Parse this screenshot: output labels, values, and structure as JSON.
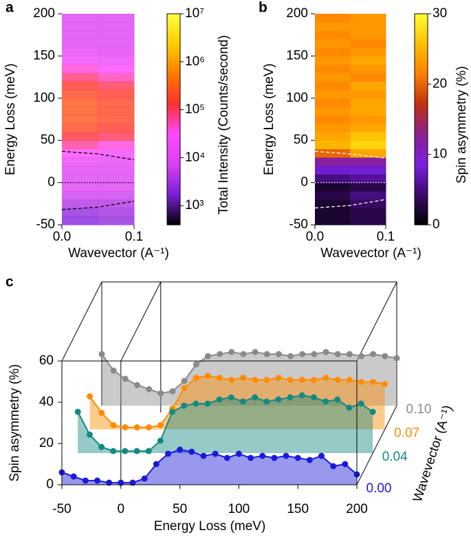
{
  "chart_data": [
    {
      "type": "heatmap",
      "panel": "a",
      "xlabel": "Wavevector (A⁻¹)",
      "ylabel": "Energy Loss (meV)",
      "xlim": [
        0,
        0.1
      ],
      "xticks": [
        {
          "value": 0,
          "label": "0.0"
        },
        0.1
      ],
      "ylim": [
        -50,
        200
      ],
      "yticks": [
        -50,
        0,
        50,
        100,
        150,
        200
      ],
      "xbins": [
        0,
        0.05,
        0.1
      ],
      "ybins": [
        -50,
        -40,
        -30,
        -20,
        -10,
        0,
        10,
        20,
        30,
        40,
        50,
        60,
        70,
        80,
        90,
        100,
        110,
        120,
        130,
        140,
        150,
        160,
        170,
        180,
        190,
        200
      ],
      "z": [
        [
          2000,
          2500
        ],
        [
          2500,
          3000
        ],
        [
          4000,
          4000
        ],
        [
          6000,
          6000
        ],
        [
          8000,
          8000
        ],
        [
          8000,
          8000
        ],
        [
          9000,
          9000
        ],
        [
          15000,
          12000
        ],
        [
          30000,
          20000
        ],
        [
          60000,
          40000
        ],
        [
          120000,
          100000
        ],
        [
          200000,
          150000
        ],
        [
          250000,
          200000
        ],
        [
          250000,
          200000
        ],
        [
          250000,
          200000
        ],
        [
          200000,
          150000
        ],
        [
          150000,
          100000
        ],
        [
          80000,
          50000
        ],
        [
          40000,
          25000
        ],
        [
          20000,
          15000
        ],
        [
          12000,
          10000
        ],
        [
          10000,
          9000
        ],
        [
          9000,
          8000
        ],
        [
          8000,
          8000
        ],
        [
          8000,
          8000
        ]
      ],
      "guide_color": "#000000",
      "guides": [
        {
          "style": "dashed",
          "x": [
            0,
            0.05,
            0.1
          ],
          "y": [
            37,
            34,
            27
          ]
        },
        {
          "style": "dotted",
          "x": [
            0,
            0.1
          ],
          "y": [
            0,
            0
          ]
        },
        {
          "style": "dashed",
          "x": [
            0,
            0.05,
            0.1
          ],
          "y": [
            -32,
            -29,
            -22
          ]
        }
      ],
      "colorbar": {
        "label": "Total Intensity (Counts/second)",
        "log": true,
        "lim": [
          400,
          10000000
        ],
        "ticks": [
          {
            "value": 1000,
            "label": "10³"
          },
          {
            "value": 10000,
            "label": "10⁴"
          },
          {
            "value": 100000,
            "label": "10⁵"
          },
          {
            "value": 1000000,
            "label": "10⁶"
          },
          {
            "value": 10000000,
            "label": "10⁷"
          }
        ],
        "colormap": [
          "#000000",
          "#7a1fd6",
          "#d840f0",
          "#ff48ff",
          "#ff3030",
          "#ff7a00",
          "#ffcc00",
          "#ffff40"
        ]
      }
    },
    {
      "type": "heatmap",
      "panel": "b",
      "xlabel": "Wavevector (A⁻¹)",
      "ylabel": "Energy Loss (meV)",
      "xlim": [
        0,
        0.1
      ],
      "xticks": [
        {
          "value": 0,
          "label": "0.0"
        },
        0.1
      ],
      "ylim": [
        -50,
        200
      ],
      "yticks": [
        -50,
        0,
        50,
        100,
        150,
        200
      ],
      "xbins": [
        0,
        0.05,
        0.1
      ],
      "ybins": [
        -50,
        -40,
        -30,
        -20,
        -10,
        0,
        10,
        20,
        30,
        40,
        50,
        60,
        70,
        80,
        90,
        100,
        110,
        120,
        130,
        140,
        150,
        160,
        170,
        180,
        190,
        200
      ],
      "z": [
        [
          2,
          3
        ],
        [
          2,
          3
        ],
        [
          2,
          4
        ],
        [
          3,
          5
        ],
        [
          2,
          3
        ],
        [
          5,
          6
        ],
        [
          8,
          8
        ],
        [
          12,
          12
        ],
        [
          20,
          24
        ],
        [
          25,
          27
        ],
        [
          24,
          26
        ],
        [
          23,
          24
        ],
        [
          22,
          23
        ],
        [
          23,
          24
        ],
        [
          22,
          24
        ],
        [
          23,
          23
        ],
        [
          22,
          24
        ],
        [
          23,
          22
        ],
        [
          22,
          23
        ],
        [
          23,
          24
        ],
        [
          22,
          23
        ],
        [
          23,
          22
        ],
        [
          22,
          23
        ],
        [
          23,
          23
        ],
        [
          22,
          23
        ]
      ],
      "guide_color": "#ffffff",
      "guides": [
        {
          "style": "dashed",
          "x": [
            0,
            0.05,
            0.1
          ],
          "y": [
            37,
            34,
            29
          ]
        },
        {
          "style": "dotted",
          "x": [
            0,
            0.1
          ],
          "y": [
            0,
            0
          ]
        },
        {
          "style": "dashed",
          "x": [
            0,
            0.05,
            0.1
          ],
          "y": [
            -30,
            -27,
            -20
          ]
        }
      ],
      "colorbar": {
        "label": "Spin asymmetry (%)",
        "log": false,
        "lim": [
          0,
          30
        ],
        "ticks": [
          0,
          10,
          20,
          30
        ],
        "colormap": [
          "#000000",
          "#3a0a6a",
          "#7a20e0",
          "#8a2090",
          "#c03010",
          "#ff8000",
          "#ffc000",
          "#ffff30"
        ]
      }
    },
    {
      "type": "waterfall",
      "panel": "c",
      "xlabel": "Energy Loss (meV)",
      "ylabel": "Spin asymmetry (%)",
      "zlabel": "Wavevector (A⁻¹)",
      "xlim": [
        -50,
        200
      ],
      "xticks": [
        -50,
        0,
        50,
        100,
        150,
        200
      ],
      "ylim": [
        0,
        60
      ],
      "yticks": [
        0,
        20,
        40,
        60
      ],
      "zlim": [
        0,
        0.1
      ],
      "zticks": [
        {
          "value": 0,
          "label": "0.00"
        },
        {
          "value": 0.04,
          "label": "0.04"
        },
        {
          "value": 0.07,
          "label": "0.07"
        },
        {
          "value": 0.1,
          "label": "0.10"
        }
      ],
      "x": [
        -50,
        -40,
        -30,
        -20,
        -10,
        0,
        10,
        20,
        30,
        40,
        50,
        60,
        70,
        80,
        90,
        100,
        110,
        120,
        130,
        140,
        150,
        160,
        170,
        180,
        190,
        200
      ],
      "series": [
        {
          "color": "#1a1adb",
          "values": [
            6,
            4,
            2,
            2,
            1,
            1,
            1,
            3,
            10,
            15,
            17,
            16,
            14,
            15,
            13,
            15,
            13,
            14,
            13,
            14,
            13,
            12,
            14,
            9,
            10,
            5
          ]
        },
        {
          "color": "#138a80",
          "values": [
            20,
            9,
            3,
            1,
            1,
            1,
            1,
            6,
            20,
            23,
            24,
            24,
            26,
            27,
            25,
            27,
            25,
            26,
            27,
            28,
            27,
            25,
            26,
            22,
            24,
            20
          ]
        },
        {
          "color": "#ff8c00",
          "values": [
            16,
            8,
            2,
            1,
            1,
            1,
            2,
            10,
            20,
            25,
            26,
            25,
            24,
            25,
            24,
            24,
            25,
            24,
            24,
            24,
            25,
            24,
            24,
            23,
            23,
            22
          ]
        },
        {
          "color": "#8a8a8a",
          "values": [
            25,
            17,
            13,
            10,
            8,
            6,
            7,
            12,
            20,
            24,
            25,
            26,
            25,
            26,
            25,
            25,
            24,
            25,
            25,
            26,
            25,
            25,
            24,
            25,
            24,
            23
          ]
        }
      ]
    }
  ]
}
